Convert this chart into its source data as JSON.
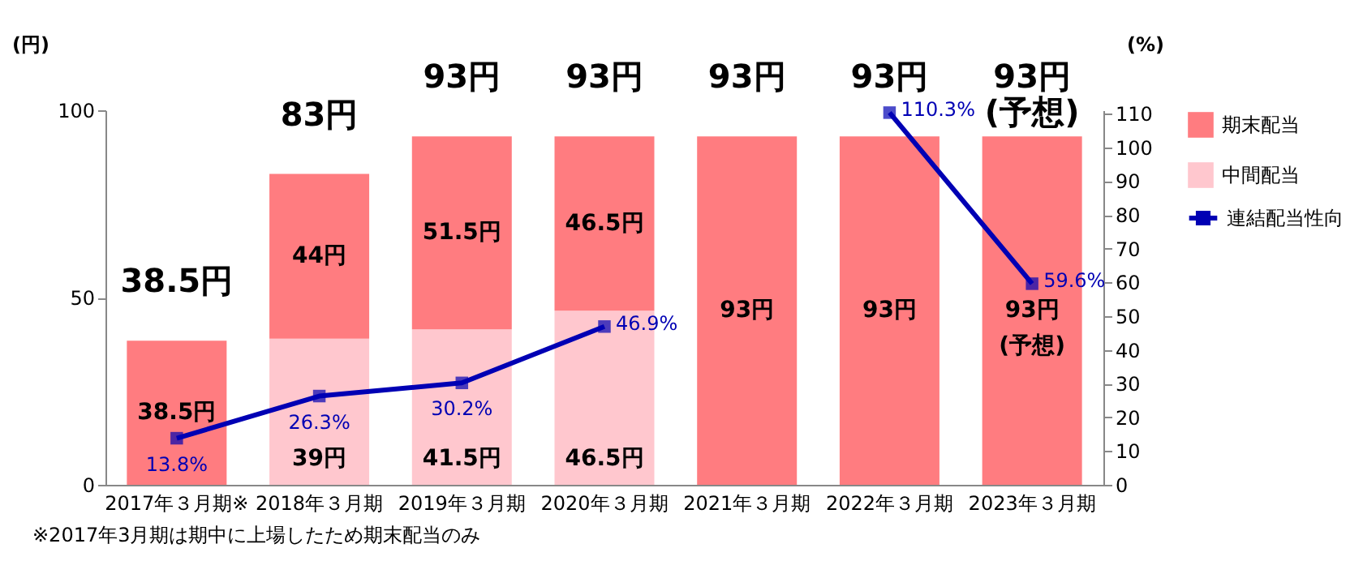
{
  "chart_data": {
    "type": "bar",
    "stacked": true,
    "categories": [
      "2017年３月期※",
      "2018年３月期",
      "2019年３月期",
      "2020年３月期",
      "2021年３月期",
      "2022年３月期",
      "2023年３月期"
    ],
    "series": [
      {
        "name": "中間配当",
        "color": "#ffc7ce",
        "values": [
          null,
          39,
          41.5,
          46.5,
          null,
          null,
          null
        ],
        "value_labels": [
          null,
          "39円",
          "41.5円",
          "46.5円",
          null,
          null,
          null
        ]
      },
      {
        "name": "期末配当",
        "color": "#ff7c80",
        "values": [
          38.5,
          44,
          51.5,
          46.5,
          93,
          93,
          93
        ],
        "value_labels": [
          "38.5円",
          "44円",
          "51.5円",
          "46.5円",
          "93円",
          "93円",
          "93円\n(予想)"
        ]
      },
      {
        "name": "連結配当性向",
        "type": "line",
        "axis": "y2",
        "color": "#0000b4",
        "values": [
          13.8,
          26.3,
          30.2,
          46.9,
          null,
          110.3,
          59.6
        ],
        "value_labels": [
          "13.8%",
          "26.3%",
          "30.2%",
          "46.9%",
          null,
          "110.3%",
          "59.6%"
        ]
      }
    ],
    "totals": [
      "38.5円",
      "83円",
      "93円",
      "93円",
      "93円",
      "93円",
      "93円\n(予想)"
    ],
    "ylim": [
      0,
      100
    ],
    "yticks": [
      0,
      50,
      100
    ],
    "y2lim": [
      0,
      111
    ],
    "y2ticks": [
      0,
      10,
      20,
      30,
      40,
      50,
      60,
      70,
      80,
      90,
      100,
      110
    ],
    "ylabel": "(円)",
    "y2label": "(%)",
    "marker": "square",
    "legend": "right",
    "annotations": [
      "※2017年3月期は期中に上場したため期末配当のみ"
    ]
  }
}
